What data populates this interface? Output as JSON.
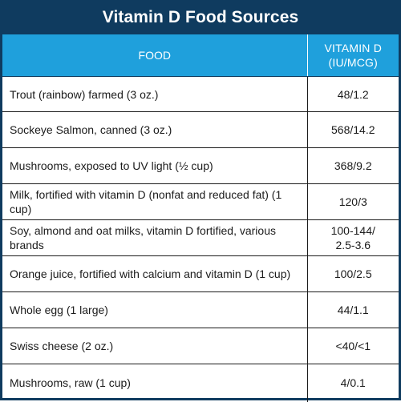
{
  "title": "Vitamin D Food Sources",
  "headers": {
    "food": "FOOD",
    "vitamin_line1": "VITAMIN D",
    "vitamin_line2": "(IU/MCG)"
  },
  "rows": [
    {
      "food": "Trout (rainbow) farmed (3 oz.)",
      "vitamin": "48/1.2"
    },
    {
      "food": "Sockeye Salmon, canned (3 oz.)",
      "vitamin": "568/14.2"
    },
    {
      "food": "Mushrooms, exposed to UV light (½ cup)",
      "vitamin": "368/9.2"
    },
    {
      "food": "Milk, fortified with vitamin D (nonfat and reduced fat) (1 cup)",
      "vitamin": "120/3"
    },
    {
      "food": "Soy, almond and oat milks, vitamin D fortified, various brands",
      "vitamin_line1": "100-144/",
      "vitamin_line2": "2.5-3.6"
    },
    {
      "food": "Orange juice, fortified with calcium and vitamin D (1 cup)",
      "vitamin": "100/2.5"
    },
    {
      "food": "Whole egg (1 large)",
      "vitamin": "44/1.1"
    },
    {
      "food": "Swiss cheese (2 oz.)",
      "vitamin": "<40/<1"
    },
    {
      "food": "Mushrooms, raw (1 cup)",
      "vitamin": "4/0.1"
    }
  ],
  "colors": {
    "title_bg": "#0f3b5f",
    "header_bg": "#1fa0dc",
    "text": "#1b1b1b"
  }
}
